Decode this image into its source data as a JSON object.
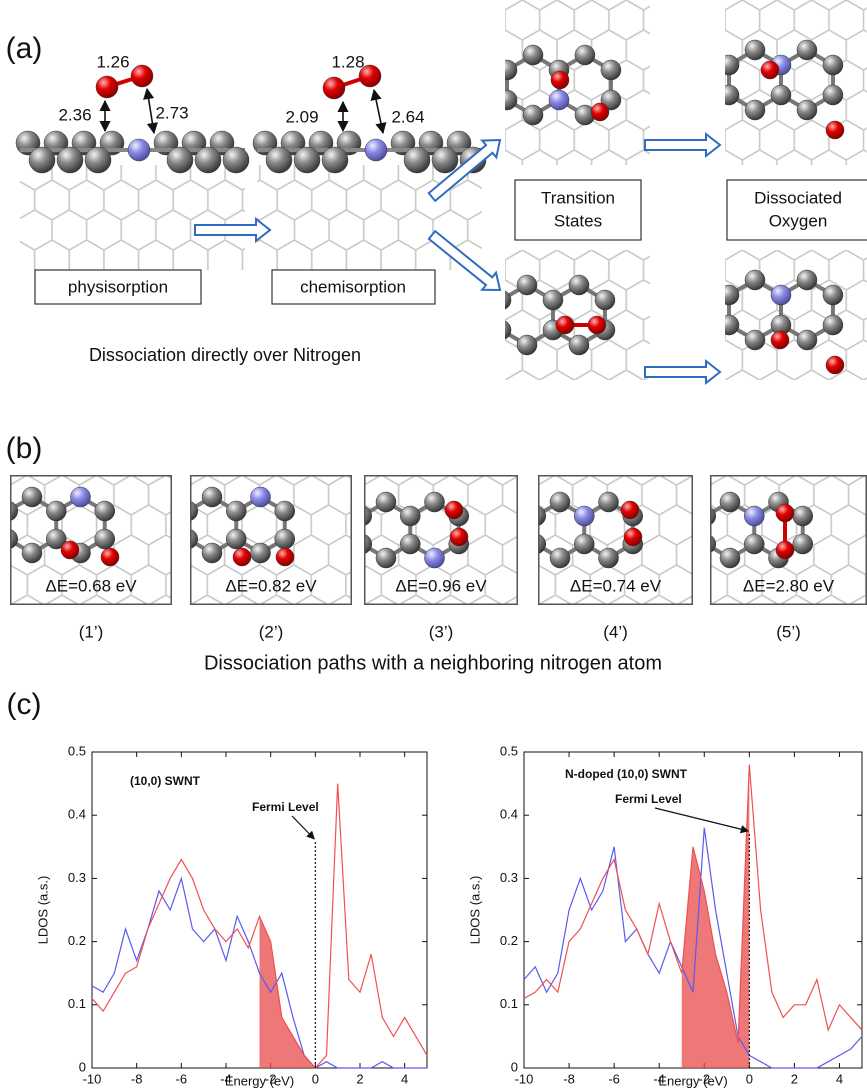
{
  "panel_a": {
    "label": "(a)",
    "physisorption": {
      "oo": "1.26",
      "left": "2.36",
      "right": "2.73",
      "name": "physisorption"
    },
    "chemisorption": {
      "oo": "1.28",
      "left": "2.09",
      "right": "2.64",
      "name": "chemisorption"
    },
    "transition_states": [
      "Transition",
      "States"
    ],
    "dissociated_oxygen": [
      "Dissociated",
      "Oxygen"
    ],
    "caption": "Dissociation directly over Nitrogen"
  },
  "panel_b": {
    "label": "(b)",
    "paths": [
      {
        "energy": "ΔE=0.68 eV",
        "id": "(1’)"
      },
      {
        "energy": "ΔE=0.82 eV",
        "id": "(2’)"
      },
      {
        "energy": "ΔE=0.96 eV",
        "id": "(3’)"
      },
      {
        "energy": "ΔE=0.74 eV",
        "id": "(4’)"
      },
      {
        "energy": "ΔE=2.80 eV",
        "id": "(5’)"
      }
    ],
    "caption": "Dissociation paths with a neighboring nitrogen atom"
  },
  "panel_c": {
    "label": "(c)"
  },
  "chart_data": [
    {
      "type": "line",
      "annotation": "(10,0) SWNT",
      "fermi_label": "Fermi Level",
      "xlabel": "Energy (eV)",
      "ylabel": "LDOS (a.s.)",
      "x": [
        -10,
        -9.5,
        -9,
        -8.5,
        -8,
        -7.5,
        -7,
        -6.5,
        -6,
        -5.5,
        -5,
        -4.5,
        -4,
        -3.5,
        -3,
        -2.5,
        -2,
        -1.5,
        -1,
        -0.5,
        0,
        0.5,
        1,
        1.5,
        2,
        2.5,
        3,
        3.5,
        4,
        4.5,
        5
      ],
      "series": [
        {
          "color": "#5a5af0",
          "values": [
            0.13,
            0.12,
            0.15,
            0.22,
            0.17,
            0.22,
            0.28,
            0.25,
            0.3,
            0.22,
            0.2,
            0.22,
            0.17,
            0.24,
            0.2,
            0.15,
            0.12,
            0.15,
            0.08,
            0.02,
            0,
            0.01,
            0,
            0,
            0,
            0,
            0.01,
            0,
            0,
            0,
            0
          ]
        },
        {
          "color": "#f05050",
          "values": [
            0.11,
            0.09,
            0.12,
            0.15,
            0.16,
            0.22,
            0.26,
            0.3,
            0.33,
            0.3,
            0.25,
            0.22,
            0.2,
            0.22,
            0.19,
            0.24,
            0.2,
            0.08,
            0.05,
            0.02,
            0,
            0.02,
            0.45,
            0.14,
            0.12,
            0.18,
            0.08,
            0.05,
            0.08,
            0.05,
            0.02
          ]
        }
      ],
      "xlim": [
        -10,
        5
      ],
      "ylim": [
        0,
        0.5
      ],
      "xticks": [
        -10,
        -8,
        -6,
        -4,
        -2,
        0,
        2,
        4
      ],
      "yticks": [
        0,
        0.1,
        0.2,
        0.3,
        0.4,
        0.5
      ],
      "fermi_x": 0,
      "shaded": [
        -2.5,
        0
      ],
      "shade_color": "#e84a4a"
    },
    {
      "type": "line",
      "annotation": "N-doped (10,0) SWNT",
      "fermi_label": "Fermi Level",
      "xlabel": "Energy (eV)",
      "ylabel": "LDOS (a.s.)",
      "x": [
        -10,
        -9.5,
        -9,
        -8.5,
        -8,
        -7.5,
        -7,
        -6.5,
        -6,
        -5.5,
        -5,
        -4.5,
        -4,
        -3.5,
        -3,
        -2.5,
        -2,
        -1.5,
        -1,
        -0.5,
        0,
        0.5,
        1,
        1.5,
        2,
        2.5,
        3,
        3.5,
        4,
        4.5,
        5
      ],
      "series": [
        {
          "color": "#5a5af0",
          "values": [
            0.14,
            0.16,
            0.12,
            0.15,
            0.25,
            0.3,
            0.25,
            0.28,
            0.35,
            0.2,
            0.22,
            0.18,
            0.15,
            0.2,
            0.16,
            0.12,
            0.38,
            0.25,
            0.15,
            0.05,
            0.02,
            0.01,
            0,
            0,
            0,
            0,
            0,
            0.01,
            0.02,
            0.03,
            0.05
          ]
        },
        {
          "color": "#f05050",
          "values": [
            0.11,
            0.12,
            0.14,
            0.12,
            0.2,
            0.22,
            0.26,
            0.3,
            0.33,
            0.25,
            0.22,
            0.18,
            0.26,
            0.2,
            0.15,
            0.35,
            0.28,
            0.18,
            0.12,
            0.04,
            0.48,
            0.25,
            0.12,
            0.08,
            0.1,
            0.1,
            0.14,
            0.06,
            0.1,
            0.08,
            0.06
          ]
        }
      ],
      "xlim": [
        -10,
        5
      ],
      "ylim": [
        0,
        0.5
      ],
      "xticks": [
        -10,
        -8,
        -6,
        -4,
        -2,
        0,
        2,
        4
      ],
      "yticks": [
        0,
        0.1,
        0.2,
        0.3,
        0.4,
        0.5
      ],
      "fermi_x": 0,
      "shaded": [
        -3,
        0
      ],
      "shade_color": "#e84a4a"
    }
  ]
}
